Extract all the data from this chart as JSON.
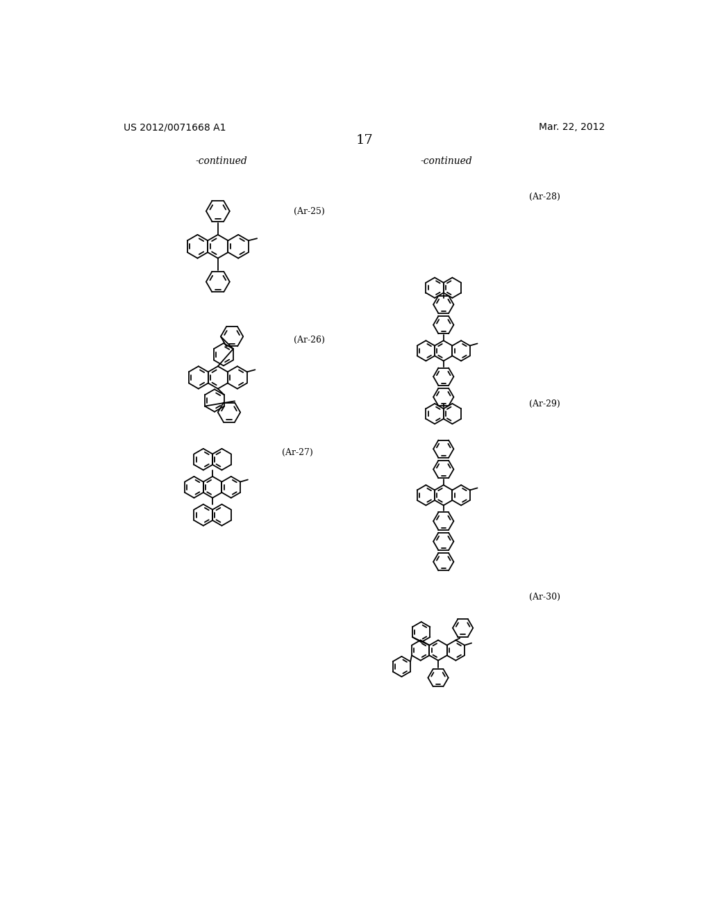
{
  "page_header_left": "US 2012/0071668 A1",
  "page_header_right": "Mar. 22, 2012",
  "page_number": "17",
  "continued_left": "-continued",
  "continued_right": "-continued",
  "labels": [
    "(Ar-25)",
    "(Ar-26)",
    "(Ar-27)",
    "(Ar-28)",
    "(Ar-29)",
    "(Ar-30)"
  ],
  "background_color": "#ffffff",
  "line_color": "#000000",
  "font_size_header": 10,
  "font_size_label": 9,
  "font_size_page": 13
}
